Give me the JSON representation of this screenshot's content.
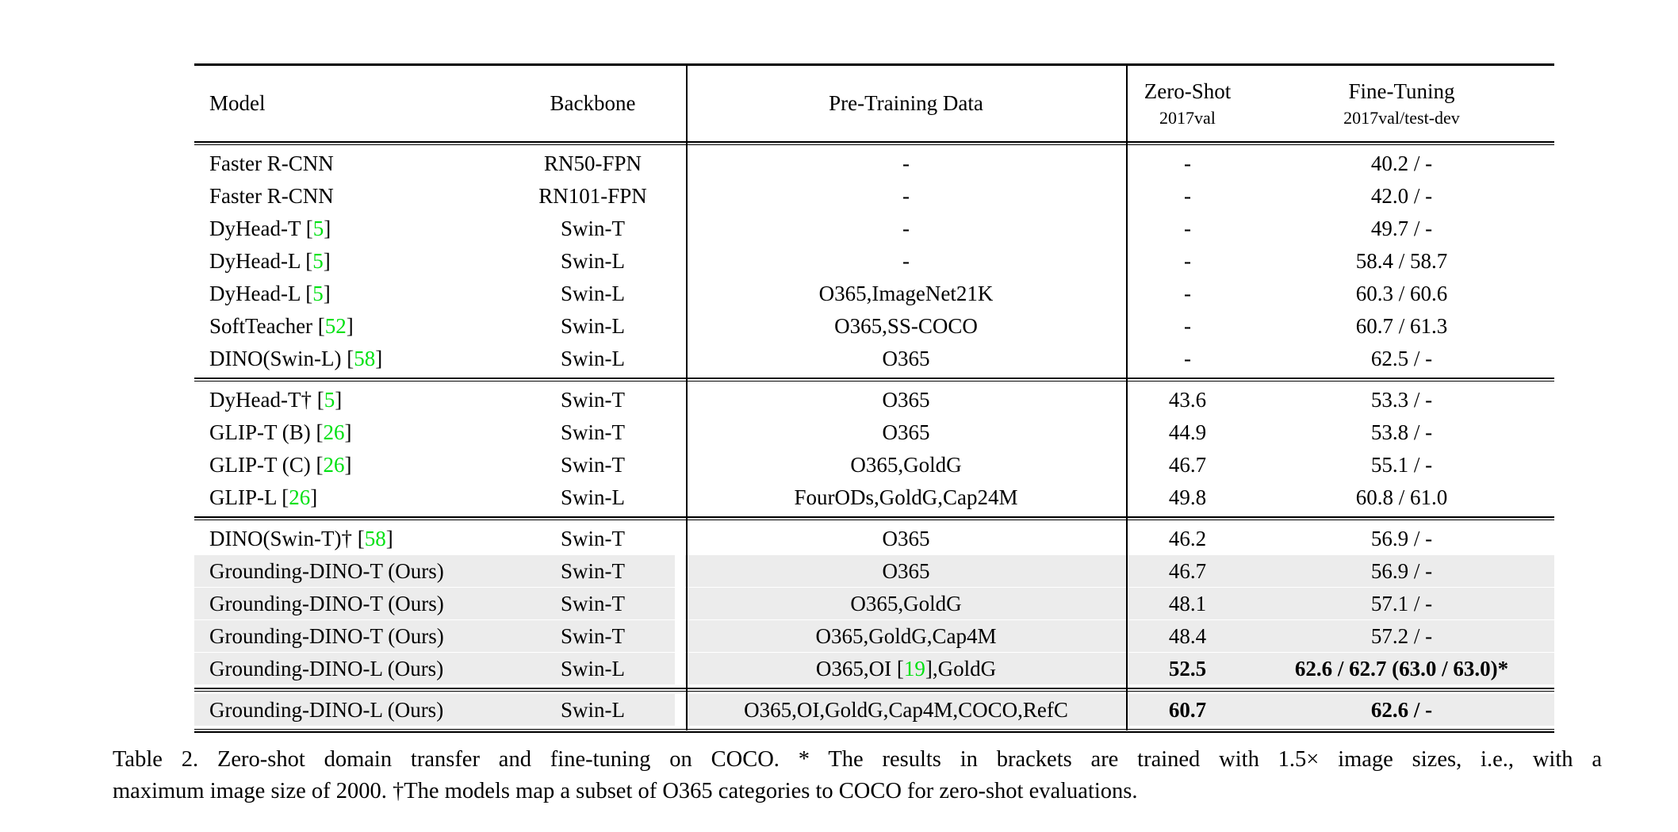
{
  "colors": {
    "citation_green": "#00e112",
    "row_highlight": "#ececec",
    "text": "#000000",
    "background": "#ffffff"
  },
  "table": {
    "header": {
      "model": "Model",
      "backbone": "Backbone",
      "pretrain": "Pre-Training Data",
      "zeroshot_title": "Zero-Shot",
      "zeroshot_sub": "2017val",
      "finetune_title": "Fine-Tuning",
      "finetune_sub": "2017val/test-dev"
    },
    "sections": [
      {
        "rows": [
          {
            "model": [
              {
                "t": "Faster R-CNN"
              }
            ],
            "backbone": "RN50-FPN",
            "pretrain": [
              {
                "t": "-"
              }
            ],
            "zeroshot": "-",
            "finetune": "40.2 / -",
            "highlight": false,
            "bold": false
          },
          {
            "model": [
              {
                "t": "Faster R-CNN"
              }
            ],
            "backbone": "RN101-FPN",
            "pretrain": [
              {
                "t": "-"
              }
            ],
            "zeroshot": "-",
            "finetune": "42.0 / -",
            "highlight": false,
            "bold": false
          },
          {
            "model": [
              {
                "t": "DyHead-T ["
              },
              {
                "c": "5"
              },
              {
                "t": "]"
              }
            ],
            "backbone": "Swin-T",
            "pretrain": [
              {
                "t": "-"
              }
            ],
            "zeroshot": "-",
            "finetune": "49.7 / -",
            "highlight": false,
            "bold": false
          },
          {
            "model": [
              {
                "t": "DyHead-L ["
              },
              {
                "c": "5"
              },
              {
                "t": "]"
              }
            ],
            "backbone": "Swin-L",
            "pretrain": [
              {
                "t": "-"
              }
            ],
            "zeroshot": "-",
            "finetune": "58.4 / 58.7",
            "highlight": false,
            "bold": false
          },
          {
            "model": [
              {
                "t": "DyHead-L ["
              },
              {
                "c": "5"
              },
              {
                "t": "]"
              }
            ],
            "backbone": "Swin-L",
            "pretrain": [
              {
                "t": "O365,ImageNet21K"
              }
            ],
            "zeroshot": "-",
            "finetune": "60.3 / 60.6",
            "highlight": false,
            "bold": false
          },
          {
            "model": [
              {
                "t": "SoftTeacher ["
              },
              {
                "c": "52"
              },
              {
                "t": "]"
              }
            ],
            "backbone": "Swin-L",
            "pretrain": [
              {
                "t": "O365,SS-COCO"
              }
            ],
            "zeroshot": "-",
            "finetune": "60.7 / 61.3",
            "highlight": false,
            "bold": false
          },
          {
            "model": [
              {
                "t": "DINO(Swin-L) ["
              },
              {
                "c": "58"
              },
              {
                "t": "]"
              }
            ],
            "backbone": "Swin-L",
            "pretrain": [
              {
                "t": "O365"
              }
            ],
            "zeroshot": "-",
            "finetune": "62.5 / -",
            "highlight": false,
            "bold": false
          }
        ]
      },
      {
        "rows": [
          {
            "model": [
              {
                "t": "DyHead-T† ["
              },
              {
                "c": "5"
              },
              {
                "t": "]"
              }
            ],
            "backbone": "Swin-T",
            "pretrain": [
              {
                "t": "O365"
              }
            ],
            "zeroshot": "43.6",
            "finetune": "53.3 / -",
            "highlight": false,
            "bold": false
          },
          {
            "model": [
              {
                "t": "GLIP-T (B) ["
              },
              {
                "c": "26"
              },
              {
                "t": "]"
              }
            ],
            "backbone": "Swin-T",
            "pretrain": [
              {
                "t": "O365"
              }
            ],
            "zeroshot": "44.9",
            "finetune": "53.8 / -",
            "highlight": false,
            "bold": false
          },
          {
            "model": [
              {
                "t": "GLIP-T (C) ["
              },
              {
                "c": "26"
              },
              {
                "t": "]"
              }
            ],
            "backbone": "Swin-T",
            "pretrain": [
              {
                "t": "O365,GoldG"
              }
            ],
            "zeroshot": "46.7",
            "finetune": "55.1 / -",
            "highlight": false,
            "bold": false
          },
          {
            "model": [
              {
                "t": "GLIP-L ["
              },
              {
                "c": "26"
              },
              {
                "t": "]"
              }
            ],
            "backbone": "Swin-L",
            "pretrain": [
              {
                "t": "FourODs,GoldG,Cap24M"
              }
            ],
            "zeroshot": "49.8",
            "finetune": "60.8 / 61.0",
            "highlight": false,
            "bold": false
          }
        ]
      },
      {
        "rows": [
          {
            "model": [
              {
                "t": "DINO(Swin-T)† ["
              },
              {
                "c": "58"
              },
              {
                "t": "]"
              }
            ],
            "backbone": "Swin-T",
            "pretrain": [
              {
                "t": "O365"
              }
            ],
            "zeroshot": "46.2",
            "finetune": "56.9 / -",
            "highlight": false,
            "bold": false
          },
          {
            "model": [
              {
                "t": "Grounding-DINO-T (Ours)"
              }
            ],
            "backbone": "Swin-T",
            "pretrain": [
              {
                "t": "O365"
              }
            ],
            "zeroshot": "46.7",
            "finetune": "56.9 / -",
            "highlight": true,
            "bold": false
          },
          {
            "model": [
              {
                "t": "Grounding-DINO-T (Ours)"
              }
            ],
            "backbone": "Swin-T",
            "pretrain": [
              {
                "t": "O365,GoldG"
              }
            ],
            "zeroshot": "48.1",
            "finetune": "57.1 / -",
            "highlight": true,
            "bold": false
          },
          {
            "model": [
              {
                "t": "Grounding-DINO-T (Ours)"
              }
            ],
            "backbone": "Swin-T",
            "pretrain": [
              {
                "t": "O365,GoldG,Cap4M"
              }
            ],
            "zeroshot": "48.4",
            "finetune": "57.2 / -",
            "highlight": true,
            "bold": false
          },
          {
            "model": [
              {
                "t": "Grounding-DINO-L (Ours)"
              }
            ],
            "backbone": "Swin-L",
            "pretrain": [
              {
                "t": "O365,OI ["
              },
              {
                "c": "19"
              },
              {
                "t": "],GoldG"
              }
            ],
            "zeroshot": "52.5",
            "finetune": "62.6 / 62.7 (63.0 / 63.0)*",
            "highlight": true,
            "bold": true
          }
        ]
      },
      {
        "rows": [
          {
            "model": [
              {
                "t": "Grounding-DINO-L (Ours)"
              }
            ],
            "backbone": "Swin-L",
            "pretrain": [
              {
                "t": "O365,OI,GoldG,Cap4M,COCO,RefC"
              }
            ],
            "zeroshot": "60.7",
            "finetune": "62.6 / -",
            "highlight": true,
            "bold": true
          }
        ]
      }
    ]
  },
  "caption": {
    "line1": "Table 2.  Zero-shot domain transfer and fine-tuning on COCO. * The results in brackets are trained with 1.5× image sizes, i.e., with a",
    "line2": "maximum image size of 2000. †The models map a subset of O365 categories to COCO for zero-shot evaluations."
  }
}
